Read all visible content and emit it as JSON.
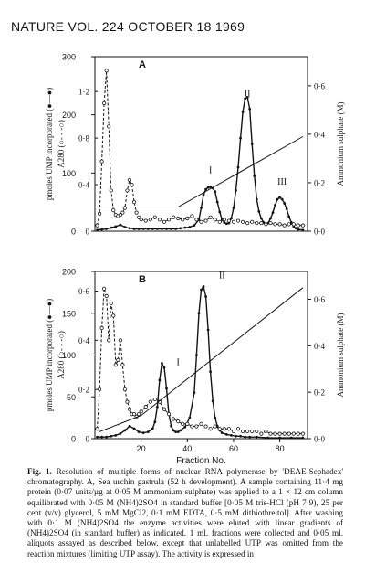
{
  "header": {
    "text": "NATURE VOL. 224 OCTOBER 18 1969"
  },
  "caption": {
    "label": "Fig. 1.",
    "text": "Resolution of multiple forms of nuclear RNA polymerase by 'DEAE-Sephadex' chromatography. A, Sea urchin gastrula (52 h development). A sample containing 11·4 mg protein (0·07 units/µg at 0·05 M ammonium sulphate) was applied to a 1 × 12 cm column equilibrated with 0·05 M (NH4)2SO4 in standard buffer [0·05 M tris-HCl (pH 7·9), 25 per cent (v/v) glycerol, 5 mM MgCl2, 0·1 mM EDTA, 0·5 mM dithiothreitol]. After washing with 0·1 M (NH4)2SO4 the enzyme activities were eluted with linear gradients of (NH4)2SO4 (in standard buffer) as indicated. 1 ml. fractions were collected and 0·05 ml. aliquots assayed as described below, except that unlabelled UTP was omitted from the reaction mixtures (limiting UTP assay). The activity is expressed in"
  },
  "chart_data": [
    {
      "panel": "A",
      "type": "line",
      "left_axis_label": "pmoles UMP incorporated (●—●)",
      "left_ticks": [
        0,
        100,
        200,
        300
      ],
      "inner_axis_label": "A280 (○- - -○)",
      "inner_ticks": [
        "0",
        "0·4",
        "0·8",
        "1·2"
      ],
      "right_axis_label": "Ammonium sulphate (M)",
      "right_ticks": [
        "0·0",
        "0·2",
        "0·4",
        "0·6"
      ],
      "x_range": [
        0,
        92
      ],
      "ylim_pmoles": [
        0,
        300
      ],
      "ylim_a280": [
        0,
        1.5
      ],
      "ylim_ammonium": [
        0,
        0.72
      ],
      "peak_labels": [
        {
          "text": "I",
          "x": 50,
          "y_pmoles": 100
        },
        {
          "text": "II",
          "x": 66,
          "y_pmoles": 232
        },
        {
          "text": "III",
          "x": 81,
          "y_pmoles": 80
        }
      ],
      "series": [
        {
          "style": "solid-dots",
          "axis": "pmoles",
          "x": [
            1,
            3,
            5,
            7,
            9,
            11,
            13,
            15,
            17,
            19,
            21,
            23,
            25,
            27,
            29,
            31,
            33,
            35,
            37,
            39,
            41,
            43,
            45,
            46,
            47,
            48,
            49,
            50,
            51,
            52,
            53,
            54,
            55,
            56,
            57,
            58,
            59,
            60,
            61,
            62,
            63,
            64,
            65,
            66,
            67,
            68,
            69,
            70,
            71,
            72,
            73,
            74,
            75,
            76,
            77,
            78,
            79,
            80,
            81,
            82,
            83,
            84,
            85,
            86,
            87,
            88,
            90
          ],
          "values": [
            2,
            3,
            4,
            6,
            8,
            11,
            7,
            5,
            4,
            4,
            4,
            4,
            4,
            4,
            4,
            4,
            4,
            4,
            5,
            6,
            7,
            10,
            20,
            40,
            62,
            72,
            75,
            76,
            74,
            68,
            50,
            33,
            20,
            15,
            13,
            14,
            22,
            40,
            70,
            110,
            160,
            205,
            228,
            230,
            210,
            150,
            95,
            55,
            34,
            22,
            15,
            12,
            14,
            22,
            32,
            45,
            55,
            58,
            55,
            48,
            38,
            25,
            15,
            8,
            5,
            3,
            2
          ]
        },
        {
          "style": "dashed-circles",
          "axis": "a280",
          "x": [
            1,
            2,
            3,
            4,
            5,
            6,
            7,
            8,
            9,
            10,
            11,
            12,
            13,
            14,
            15,
            16,
            17,
            18,
            19,
            20,
            22,
            24,
            26,
            28,
            30,
            32,
            34,
            36,
            38,
            40,
            42,
            44,
            46,
            48,
            50,
            52,
            54,
            56,
            58,
            60,
            62,
            64,
            66,
            68,
            70,
            72,
            74,
            76,
            78,
            80,
            82,
            84,
            86,
            88,
            90
          ],
          "values": [
            0.05,
            0.15,
            0.6,
            1.1,
            1.38,
            0.9,
            0.35,
            0.18,
            0.14,
            0.13,
            0.14,
            0.16,
            0.2,
            0.35,
            0.44,
            0.4,
            0.25,
            0.16,
            0.12,
            0.1,
            0.09,
            0.1,
            0.12,
            0.1,
            0.08,
            0.1,
            0.12,
            0.11,
            0.1,
            0.11,
            0.13,
            0.1,
            0.08,
            0.09,
            0.12,
            0.1,
            0.08,
            0.1,
            0.09,
            0.08,
            0.09,
            0.08,
            0.07,
            0.08,
            0.07,
            0.07,
            0.06,
            0.07,
            0.06,
            0.06,
            0.05,
            0.06,
            0.06,
            0.05,
            0.05
          ]
        },
        {
          "style": "plain-line",
          "axis": "ammonium",
          "x": [
            2,
            36,
            90
          ],
          "values": [
            0.1,
            0.1,
            0.39
          ]
        }
      ]
    },
    {
      "panel": "B",
      "type": "line",
      "left_axis_label": "pmoles UMP incorporated (●—●)",
      "left_ticks": [
        0,
        50,
        100,
        150,
        200
      ],
      "inner_axis_label": "A280 (○- - -○)",
      "inner_ticks": [
        "0",
        "0·2",
        "0·4",
        "0·6"
      ],
      "right_axis_label": "Ammonium sulphate (M)",
      "right_ticks": [
        "0·0",
        "0·2",
        "0·4",
        "0·6"
      ],
      "xlabel": "Fraction No.",
      "x_ticks": [
        20,
        40,
        60,
        80
      ],
      "x_range": [
        0,
        92
      ],
      "ylim_pmoles": [
        0,
        200
      ],
      "ylim_a280": [
        0,
        0.68
      ],
      "ylim_ammonium": [
        0,
        0.72
      ],
      "peak_labels": [
        {
          "text": "I",
          "x": 36,
          "y_pmoles": 88
        },
        {
          "text": "II",
          "x": 55,
          "y_pmoles": 192
        }
      ],
      "series": [
        {
          "style": "solid-dots",
          "axis": "pmoles",
          "x": [
            1,
            3,
            5,
            7,
            9,
            11,
            13,
            15,
            17,
            19,
            21,
            23,
            25,
            26,
            27,
            28,
            29,
            30,
            31,
            32,
            33,
            34,
            35,
            36,
            37,
            39,
            41,
            43,
            44,
            45,
            46,
            47,
            48,
            49,
            50,
            51,
            52,
            53,
            54,
            55,
            57,
            59,
            61,
            63,
            65,
            67,
            70,
            75,
            80,
            85,
            90
          ],
          "values": [
            2,
            2,
            2,
            3,
            4,
            6,
            10,
            15,
            12,
            8,
            7,
            8,
            12,
            20,
            38,
            70,
            90,
            85,
            60,
            30,
            15,
            10,
            8,
            8,
            10,
            14,
            25,
            55,
            100,
            150,
            178,
            182,
            170,
            130,
            80,
            45,
            25,
            15,
            10,
            7,
            5,
            4,
            3,
            3,
            2,
            2,
            2,
            1,
            1,
            1,
            1
          ]
        },
        {
          "style": "dashed-circles",
          "axis": "a280",
          "x": [
            1,
            2,
            3,
            4,
            5,
            6,
            7,
            8,
            9,
            10,
            11,
            12,
            13,
            14,
            15,
            16,
            17,
            18,
            19,
            20,
            22,
            24,
            26,
            28,
            30,
            32,
            34,
            36,
            38,
            40,
            42,
            44,
            46,
            48,
            50,
            52,
            54,
            56,
            58,
            60,
            62,
            64,
            66,
            68,
            70,
            72,
            74,
            76,
            78,
            80,
            82,
            84,
            86,
            88,
            90
          ],
          "values": [
            0.04,
            0.2,
            0.45,
            0.61,
            0.58,
            0.4,
            0.55,
            0.5,
            0.3,
            0.32,
            0.4,
            0.3,
            0.2,
            0.15,
            0.12,
            0.1,
            0.1,
            0.09,
            0.1,
            0.11,
            0.13,
            0.15,
            0.16,
            0.15,
            0.12,
            0.1,
            0.08,
            0.07,
            0.06,
            0.06,
            0.05,
            0.05,
            0.06,
            0.05,
            0.04,
            0.05,
            0.04,
            0.04,
            0.04,
            0.03,
            0.04,
            0.03,
            0.03,
            0.03,
            0.03,
            0.02,
            0.03,
            0.02,
            0.02,
            0.02,
            0.02,
            0.02,
            0.02,
            0.02,
            0.02
          ]
        },
        {
          "style": "plain-line",
          "axis": "ammonium",
          "x": [
            2,
            20,
            90
          ],
          "values": [
            0.03,
            0.1,
            0.65
          ]
        }
      ]
    }
  ]
}
